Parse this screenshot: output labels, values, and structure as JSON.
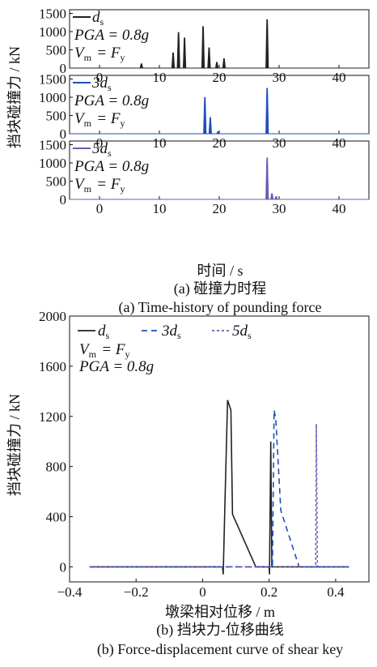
{
  "figure": {
    "caption_a_cn": "(a) 碰撞力时程",
    "caption_a_en": "(a) Time-history of pounding force",
    "caption_b_cn": "(b) 挡块力-位移曲线",
    "caption_b_en": "(b) Force-displacement curve of shear key",
    "ylabel_a": "挡块碰撞力 / kN",
    "xlabel_a": "时间 / s",
    "ylabel_b": "挡块碰撞力 / kN",
    "xlabel_b": "墩梁相对位移 / m"
  },
  "chart_data": [
    {
      "type": "line",
      "panel": "a-1",
      "legend": "d_s",
      "annotation": [
        "PGA = 0.8g",
        "V_m = F_y"
      ],
      "x_ticks": [
        0,
        10,
        20,
        30,
        40
      ],
      "y_ticks": [
        0,
        500,
        1000,
        1500
      ],
      "xlim": [
        -5,
        45
      ],
      "ylim": [
        0,
        1600
      ],
      "color": "#222222",
      "pulses": [
        {
          "t": 7.0,
          "v": 120
        },
        {
          "t": 12.3,
          "v": 420
        },
        {
          "t": 13.2,
          "v": 980
        },
        {
          "t": 14.2,
          "v": 830
        },
        {
          "t": 17.3,
          "v": 1140
        },
        {
          "t": 18.3,
          "v": 560
        },
        {
          "t": 19.6,
          "v": 160
        },
        {
          "t": 20.8,
          "v": 260
        },
        {
          "t": 28.0,
          "v": 1330
        }
      ]
    },
    {
      "type": "line",
      "panel": "a-2",
      "legend": "3d_s",
      "annotation": [
        "PGA = 0.8g",
        "V_m = F_y"
      ],
      "x_ticks": [
        0,
        10,
        20,
        30,
        40
      ],
      "y_ticks": [
        0,
        500,
        1000,
        1500
      ],
      "xlim": [
        -5,
        45
      ],
      "ylim": [
        0,
        1600
      ],
      "color": "#1f4fb8",
      "pulses": [
        {
          "t": 17.6,
          "v": 1000
        },
        {
          "t": 18.5,
          "v": 450
        },
        {
          "t": 19.8,
          "v": 60
        },
        {
          "t": 28.0,
          "v": 1250
        }
      ]
    },
    {
      "type": "line",
      "panel": "a-3",
      "legend": "5d_s",
      "annotation": [
        "PGA = 0.8g",
        "V_m = F_y"
      ],
      "x_ticks": [
        0,
        10,
        20,
        30,
        40
      ],
      "y_ticks": [
        0,
        500,
        1000,
        1500
      ],
      "xlim": [
        -5,
        45
      ],
      "ylim": [
        0,
        1600
      ],
      "color": "#6b5bb4",
      "pulses": [
        {
          "t": 28.0,
          "v": 1140
        },
        {
          "t": 28.8,
          "v": 160
        },
        {
          "t": 29.5,
          "v": 80
        }
      ]
    },
    {
      "type": "line",
      "panel": "b",
      "annotation": [
        "V_m = F_y",
        "PGA = 0.8g"
      ],
      "x_ticks": [
        -0.4,
        -0.2,
        0,
        0.2,
        0.4
      ],
      "y_ticks": [
        0,
        400,
        800,
        1200,
        1600,
        2000
      ],
      "xlim": [
        -0.4,
        0.5
      ],
      "ylim": [
        -120,
        2000
      ],
      "series": [
        {
          "name": "d_s",
          "color": "#222222",
          "dash": "",
          "points": [
            [
              -0.34,
              0
            ],
            [
              0.06,
              0
            ],
            [
              0.062,
              -60
            ],
            [
              0.068,
              600
            ],
            [
              0.075,
              1330
            ],
            [
              0.085,
              1250
            ],
            [
              0.09,
              420
            ],
            [
              0.16,
              0
            ],
            [
              0.2,
              0
            ],
            [
              0.201,
              -60
            ],
            [
              0.205,
              1000
            ],
            [
              0.208,
              0
            ],
            [
              0.34,
              0
            ],
            [
              0.36,
              0
            ],
            [
              0.44,
              0
            ]
          ]
        },
        {
          "name": "3d_s",
          "color": "#1f4fb8",
          "dash": "7,5",
          "points": [
            [
              -0.34,
              0
            ],
            [
              0.2,
              0
            ],
            [
              0.21,
              0
            ],
            [
              0.215,
              1250
            ],
            [
              0.22,
              1180
            ],
            [
              0.235,
              450
            ],
            [
              0.29,
              0
            ],
            [
              0.34,
              0
            ],
            [
              0.44,
              0
            ]
          ]
        },
        {
          "name": "5d_s",
          "color": "#6b5bb4",
          "dash": "3,3",
          "points": [
            [
              -0.34,
              0
            ],
            [
              0.34,
              0
            ],
            [
              0.342,
              1140
            ],
            [
              0.345,
              0
            ],
            [
              0.44,
              0
            ]
          ]
        }
      ]
    }
  ]
}
